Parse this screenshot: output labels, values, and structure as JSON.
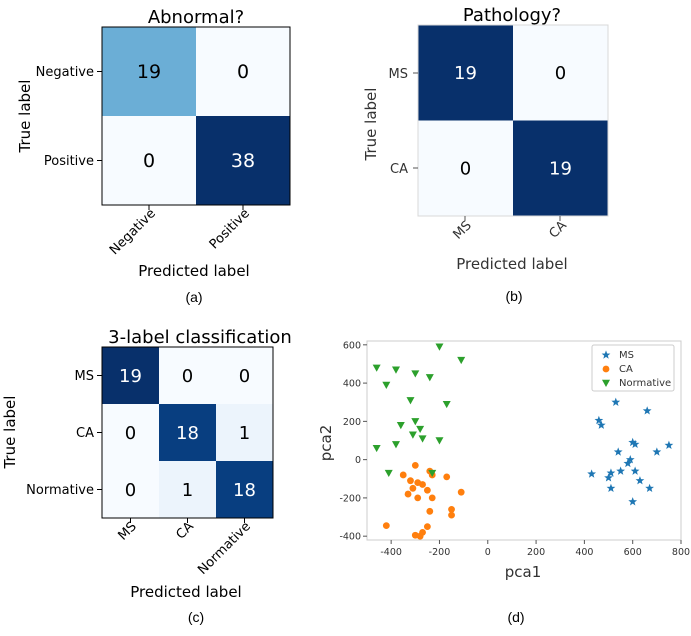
{
  "chart_data": [
    {
      "type": "heatmap",
      "title": "Abnormal?",
      "xlabel": "Predicted label",
      "ylabel": "True label",
      "labels": [
        "Negative",
        "Positive"
      ],
      "matrix": [
        [
          19,
          0
        ],
        [
          0,
          38
        ]
      ],
      "caption": "(a)",
      "colormap": "Blues"
    },
    {
      "type": "heatmap",
      "title": "Pathology?",
      "xlabel": "Predicted label",
      "ylabel": "True label",
      "labels": [
        "MS",
        "CA"
      ],
      "matrix": [
        [
          19,
          0
        ],
        [
          0,
          19
        ]
      ],
      "caption": "(b)",
      "colormap": "Blues"
    },
    {
      "type": "heatmap",
      "title": "3-label classification",
      "xlabel": "Predicted label",
      "ylabel": "True label",
      "labels": [
        "MS",
        "CA",
        "Normative"
      ],
      "matrix": [
        [
          19,
          0,
          0
        ],
        [
          0,
          18,
          1
        ],
        [
          0,
          1,
          18
        ]
      ],
      "caption": "(c)",
      "colormap": "Blues"
    },
    {
      "type": "scatter",
      "xlabel": "pca1",
      "ylabel": "pca2",
      "xlim": [
        -500,
        800
      ],
      "ylim": [
        -420,
        620
      ],
      "xticks": [
        -400,
        -200,
        0,
        200,
        400,
        600,
        800
      ],
      "yticks": [
        -400,
        -200,
        0,
        200,
        400,
        600
      ],
      "caption": "(d)",
      "legend_position": "top-right",
      "series": [
        {
          "name": "MS",
          "marker": "star",
          "color": "#1f77b4",
          "points": [
            [
              530,
              300
            ],
            [
              660,
              255
            ],
            [
              460,
              205
            ],
            [
              470,
              180
            ],
            [
              750,
              75
            ],
            [
              600,
              90
            ],
            [
              610,
              80
            ],
            [
              700,
              40
            ],
            [
              540,
              40
            ],
            [
              590,
              0
            ],
            [
              580,
              -20
            ],
            [
              550,
              -60
            ],
            [
              610,
              -60
            ],
            [
              510,
              -70
            ],
            [
              430,
              -75
            ],
            [
              500,
              -95
            ],
            [
              630,
              -110
            ],
            [
              670,
              -150
            ],
            [
              510,
              -150
            ],
            [
              600,
              -220
            ]
          ]
        },
        {
          "name": "CA",
          "marker": "circle",
          "color": "#ff7f0e",
          "points": [
            [
              -300,
              -30
            ],
            [
              -240,
              -60
            ],
            [
              -350,
              -80
            ],
            [
              -170,
              -90
            ],
            [
              -230,
              -80
            ],
            [
              -320,
              -110
            ],
            [
              -290,
              -120
            ],
            [
              -270,
              -130
            ],
            [
              -310,
              -150
            ],
            [
              -250,
              -160
            ],
            [
              -110,
              -170
            ],
            [
              -330,
              -180
            ],
            [
              -290,
              -200
            ],
            [
              -230,
              -200
            ],
            [
              -150,
              -260
            ],
            [
              -240,
              -270
            ],
            [
              -150,
              -290
            ],
            [
              -420,
              -345
            ],
            [
              -250,
              -350
            ],
            [
              -270,
              -380
            ],
            [
              -300,
              -395
            ],
            [
              -280,
              -400
            ]
          ]
        },
        {
          "name": "Normative",
          "marker": "triangle-down",
          "color": "#2ca02c",
          "points": [
            [
              -200,
              590
            ],
            [
              -110,
              520
            ],
            [
              -460,
              480
            ],
            [
              -380,
              470
            ],
            [
              -300,
              450
            ],
            [
              -240,
              430
            ],
            [
              -420,
              390
            ],
            [
              -320,
              310
            ],
            [
              -170,
              290
            ],
            [
              -300,
              200
            ],
            [
              -360,
              180
            ],
            [
              -280,
              160
            ],
            [
              -310,
              130
            ],
            [
              -270,
              110
            ],
            [
              -200,
              100
            ],
            [
              -380,
              80
            ],
            [
              -460,
              60
            ],
            [
              -410,
              -70
            ],
            [
              -230,
              -70
            ]
          ]
        }
      ]
    }
  ]
}
